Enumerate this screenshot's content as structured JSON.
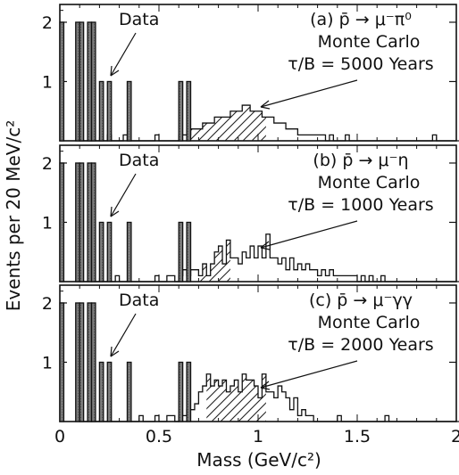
{
  "chart_data": {
    "type": "bar",
    "xlabel": "Mass (GeV/c²)",
    "ylabel": "Events per 20 MeV/c²",
    "xlim": [
      0,
      2
    ],
    "ylim": [
      0,
      2.3
    ],
    "bin_width": 0.02,
    "x_ticks": [
      "0",
      "0.5",
      "1",
      "1.5",
      "2"
    ],
    "y_ticks": [
      "1",
      "2"
    ],
    "data_bins": [
      {
        "x": 0.0,
        "count": 2
      },
      {
        "x": 0.08,
        "count": 2
      },
      {
        "x": 0.1,
        "count": 2
      },
      {
        "x": 0.14,
        "count": 2
      },
      {
        "x": 0.16,
        "count": 2
      },
      {
        "x": 0.2,
        "count": 1
      },
      {
        "x": 0.24,
        "count": 1
      },
      {
        "x": 0.34,
        "count": 1
      },
      {
        "x": 0.6,
        "count": 1
      },
      {
        "x": 0.64,
        "count": 1
      }
    ],
    "panels": [
      {
        "label": "(a) p̄ → μ⁻π⁰",
        "mc_label": "Monte Carlo",
        "lifetime": "τ/B = 5000 Years",
        "data_label": "Data",
        "mc_x0": 0.1,
        "mc_values": [
          0,
          0,
          0,
          0,
          0,
          0,
          0,
          0.1,
          0,
          0,
          0,
          0.1,
          0,
          0,
          0,
          0,
          0,
          0,
          0,
          0.1,
          0,
          0,
          0,
          0,
          0,
          0.1,
          0.1,
          0.1,
          0.2,
          0.2,
          0.2,
          0.3,
          0.3,
          0.3,
          0.4,
          0.4,
          0.4,
          0.4,
          0.5,
          0.5,
          0.5,
          0.6,
          0.6,
          0.5,
          0.5,
          0.5,
          0.4,
          0.4,
          0.4,
          0.3,
          0.3,
          0.3,
          0.2,
          0.2,
          0.2,
          0.1,
          0.1,
          0.1,
          0.1,
          0.1,
          0.1,
          0.1,
          0,
          0.1,
          0,
          0,
          0,
          0.1,
          0,
          0,
          0,
          0,
          0,
          0,
          0,
          0,
          0,
          0,
          0,
          0,
          0,
          0,
          0,
          0,
          0,
          0,
          0,
          0,
          0,
          0.1,
          0,
          0,
          0,
          0,
          0,
          0,
          0,
          0,
          0,
          0,
          0,
          0,
          0,
          0,
          0,
          0,
          0,
          0,
          0,
          0
        ],
        "hatch_from": 0.66,
        "hatch_to": 1.04
      },
      {
        "label": "(b) p̄ → μ⁻η",
        "mc_label": "Monte Carlo",
        "lifetime": "τ/B = 1000 Years",
        "data_label": "Data",
        "mc_x0": 0.1,
        "mc_values": [
          0,
          0,
          0,
          0,
          0,
          0,
          0,
          0,
          0,
          0.1,
          0,
          0,
          0,
          0,
          0,
          0,
          0,
          0,
          0,
          0.1,
          0,
          0,
          0.1,
          0.1,
          0,
          0.1,
          0.2,
          0.1,
          0.2,
          0.2,
          0.1,
          0.3,
          0.1,
          0.3,
          0.5,
          0.6,
          0.3,
          0.7,
          0.4,
          0.4,
          0.3,
          0.5,
          0.4,
          0.6,
          0.4,
          0.6,
          0.4,
          0.8,
          0.4,
          0.4,
          0.3,
          0.4,
          0.2,
          0.4,
          0.2,
          0.3,
          0.2,
          0.3,
          0.2,
          0.2,
          0.1,
          0.2,
          0.1,
          0.2,
          0.1,
          0.1,
          0.1,
          0.1,
          0.1,
          0.1,
          0,
          0.1,
          0,
          0.1,
          0,
          0,
          0.1,
          0,
          0,
          0,
          0,
          0,
          0,
          0,
          0,
          0,
          0,
          0,
          0,
          0,
          0,
          0,
          0,
          0,
          0,
          0,
          0,
          0,
          0,
          0,
          0,
          0,
          0,
          0,
          0,
          0,
          0,
          0
        ],
        "hatch_from": 0.7,
        "hatch_to": 0.86
      },
      {
        "label": "(c) p̄ → μ⁻γγ",
        "mc_label": "Monte Carlo",
        "lifetime": "τ/B = 2000 Years",
        "data_label": "Data",
        "mc_x0": 0.1,
        "mc_values": [
          0,
          0,
          0,
          0,
          0,
          0,
          0,
          0,
          0,
          0,
          0,
          0,
          0,
          0,
          0,
          0.1,
          0,
          0,
          0,
          0.1,
          0,
          0,
          0.1,
          0.1,
          0,
          0.1,
          0.1,
          0.2,
          0.2,
          0.3,
          0.5,
          0.6,
          0.8,
          0.6,
          0.7,
          0.6,
          0.7,
          0.5,
          0.6,
          0.7,
          0.5,
          0.8,
          0.7,
          0.7,
          0.6,
          0.4,
          0.8,
          0.5,
          0.5,
          0.4,
          0.6,
          0.5,
          0.4,
          0.2,
          0.4,
          0.1,
          0.2,
          0.1,
          0.1,
          0,
          0,
          0,
          0,
          0,
          0,
          0.1,
          0,
          0,
          0,
          0,
          0,
          0,
          0,
          0,
          0,
          0,
          0,
          0.1,
          0,
          0,
          0,
          0,
          0,
          0,
          0,
          0,
          0,
          0,
          0,
          0,
          0,
          0,
          0,
          0,
          0,
          0,
          0,
          0,
          0,
          0,
          0,
          0,
          0,
          0,
          0,
          0,
          0,
          0
        ],
        "hatch_from": 0.74,
        "hatch_to": 1.04
      }
    ]
  }
}
